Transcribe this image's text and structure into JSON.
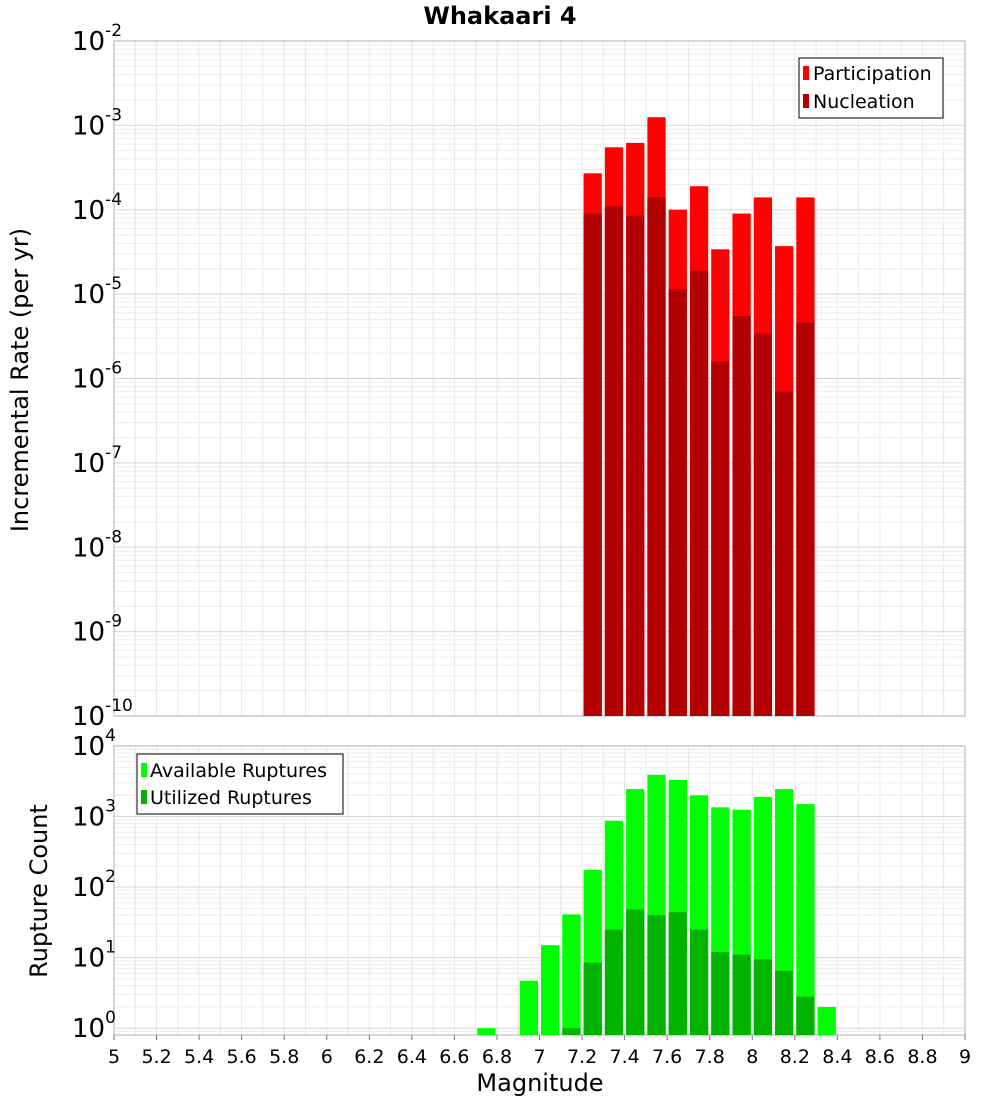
{
  "chart_data": [
    {
      "type": "bar",
      "title": "Whakaari 4",
      "ylabel": "Incremental Rate (per yr)",
      "xlabel": "",
      "log_y": true,
      "xlim": [
        5,
        9
      ],
      "ylim": [
        1e-10,
        0.01
      ],
      "grid": true,
      "legend_position": "top-right",
      "bin_width": 0.1,
      "y_ticks": [
        {
          "base": "10",
          "exp": "-10"
        },
        {
          "base": "10",
          "exp": "-9"
        },
        {
          "base": "10",
          "exp": "-8"
        },
        {
          "base": "10",
          "exp": "-7"
        },
        {
          "base": "10",
          "exp": "-6"
        },
        {
          "base": "10",
          "exp": "-5"
        },
        {
          "base": "10",
          "exp": "-4"
        },
        {
          "base": "10",
          "exp": "-3"
        },
        {
          "base": "10",
          "exp": "-2"
        }
      ],
      "series": [
        {
          "name": "Participation",
          "color": "#ff0000",
          "x": [
            7.25,
            7.35,
            7.45,
            7.55,
            7.65,
            7.75,
            7.85,
            7.95,
            8.05,
            8.15,
            8.25
          ],
          "values": [
            0.00027,
            0.00055,
            0.00062,
            0.00125,
            0.0001,
            0.00019,
            3.4e-05,
            9e-05,
            0.00014,
            3.7e-05,
            0.00014
          ]
        },
        {
          "name": "Nucleation",
          "color": "#b30000",
          "x": [
            7.25,
            7.35,
            7.45,
            7.55,
            7.65,
            7.75,
            7.85,
            7.95,
            8.05,
            8.15,
            8.25
          ],
          "values": [
            9e-05,
            0.00011,
            8.5e-05,
            0.00014,
            1.15e-05,
            1.9e-05,
            1.6e-06,
            5.5e-06,
            3.4e-06,
            7e-07,
            4.6e-06
          ]
        }
      ]
    },
    {
      "type": "bar",
      "title": "",
      "ylabel": "Rupture Count",
      "xlabel": "Magnitude",
      "log_y": true,
      "xlim": [
        5,
        9
      ],
      "ylim": [
        0.8,
        10000
      ],
      "grid": true,
      "legend_position": "top-left",
      "bin_width": 0.1,
      "x_ticks": [
        "5",
        "5.2",
        "5.4",
        "5.6",
        "5.8",
        "6",
        "6.2",
        "6.4",
        "6.6",
        "6.8",
        "7",
        "7.2",
        "7.4",
        "7.6",
        "7.8",
        "8",
        "8.2",
        "8.4",
        "8.6",
        "8.8",
        "9"
      ],
      "y_ticks": [
        {
          "base": "10",
          "exp": "0"
        },
        {
          "base": "10",
          "exp": "1"
        },
        {
          "base": "10",
          "exp": "2"
        },
        {
          "base": "10",
          "exp": "3"
        },
        {
          "base": "10",
          "exp": "4"
        }
      ],
      "series": [
        {
          "name": "Available Ruptures",
          "color": "#00ff00",
          "x": [
            6.75,
            6.95,
            7.05,
            7.15,
            7.25,
            7.35,
            7.45,
            7.55,
            7.65,
            7.75,
            7.85,
            7.95,
            8.05,
            8.15,
            8.25,
            8.35
          ],
          "values": [
            1,
            4.7,
            15,
            41,
            175,
            870,
            2450,
            3900,
            3300,
            2000,
            1350,
            1250,
            1900,
            2450,
            1500,
            2
          ]
        },
        {
          "name": "Utilized Ruptures",
          "color": "#00b300",
          "x": [
            7.15,
            7.25,
            7.35,
            7.45,
            7.55,
            7.65,
            7.75,
            7.85,
            7.95,
            8.05,
            8.15,
            8.25
          ],
          "values": [
            1,
            8.5,
            25,
            48,
            40,
            44,
            25,
            12,
            11,
            9.5,
            6.5,
            2.8
          ]
        }
      ]
    }
  ]
}
